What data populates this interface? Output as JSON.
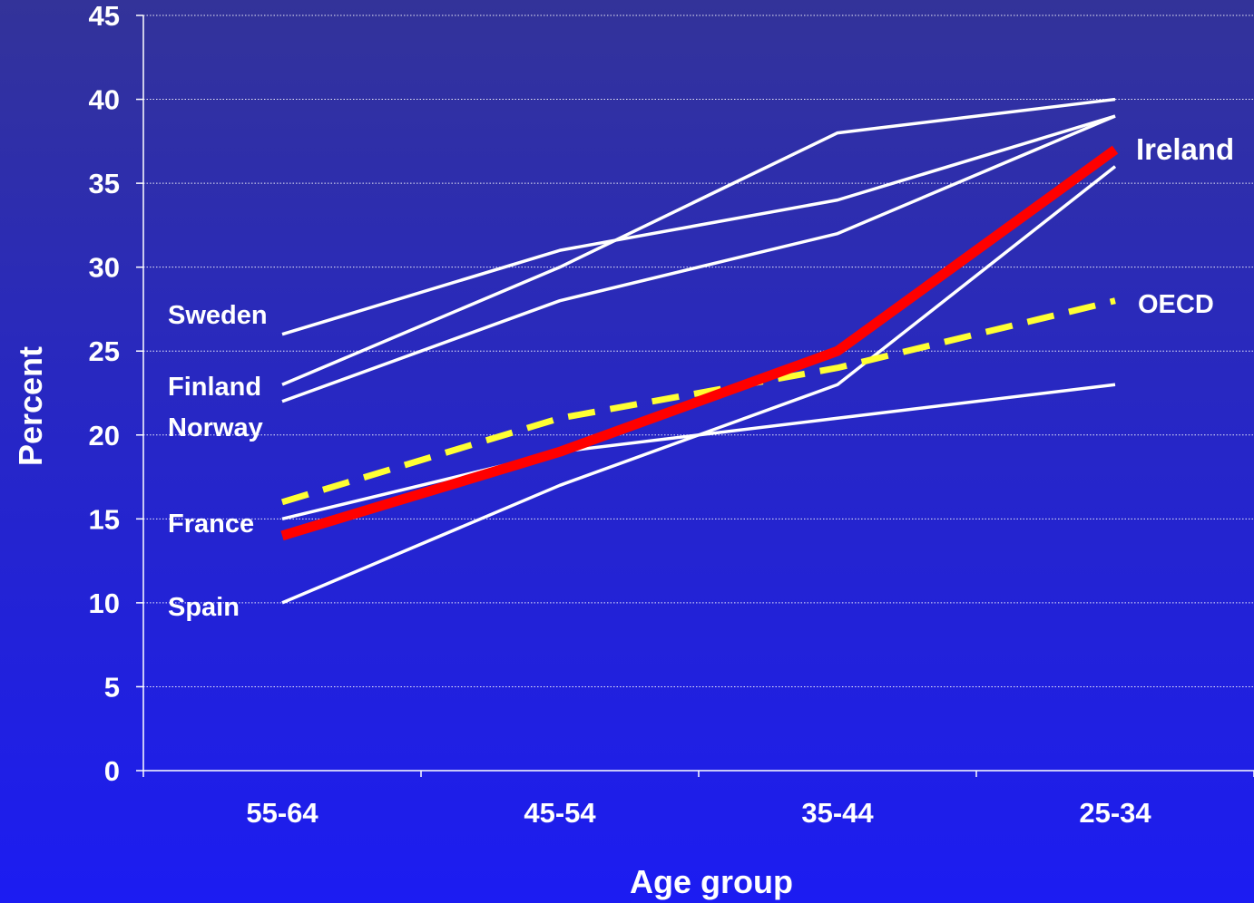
{
  "chart_data": {
    "type": "line",
    "title": "",
    "xlabel": "Age group",
    "ylabel": "Percent",
    "categories": [
      "55-64",
      "45-54",
      "35-44",
      "25-34"
    ],
    "ylim": [
      0,
      45
    ],
    "yticks": [
      0,
      5,
      10,
      15,
      20,
      25,
      30,
      35,
      40,
      45
    ],
    "grid": "horizontal dotted",
    "legend": "inline labels at line ends",
    "series": [
      {
        "name": "Sweden",
        "values": [
          26,
          31,
          34,
          39
        ],
        "color": "#ffffff",
        "style": "thin"
      },
      {
        "name": "Finland",
        "values": [
          23,
          30,
          38,
          40
        ],
        "color": "#ffffff",
        "style": "thin"
      },
      {
        "name": "Norway",
        "values": [
          22,
          28,
          32,
          39
        ],
        "color": "#ffffff",
        "style": "thin"
      },
      {
        "name": "France",
        "values": [
          15,
          19,
          21,
          23
        ],
        "color": "#ffffff",
        "style": "thin"
      },
      {
        "name": "Spain",
        "values": [
          10,
          17,
          23,
          36
        ],
        "color": "#ffffff",
        "style": "thin"
      },
      {
        "name": "OECD",
        "values": [
          16,
          21,
          24,
          28
        ],
        "color": "#ffff33",
        "style": "dashed"
      },
      {
        "name": "Ireland",
        "values": [
          14,
          19,
          25,
          37
        ],
        "color": "#ff0000",
        "style": "thick"
      }
    ]
  }
}
